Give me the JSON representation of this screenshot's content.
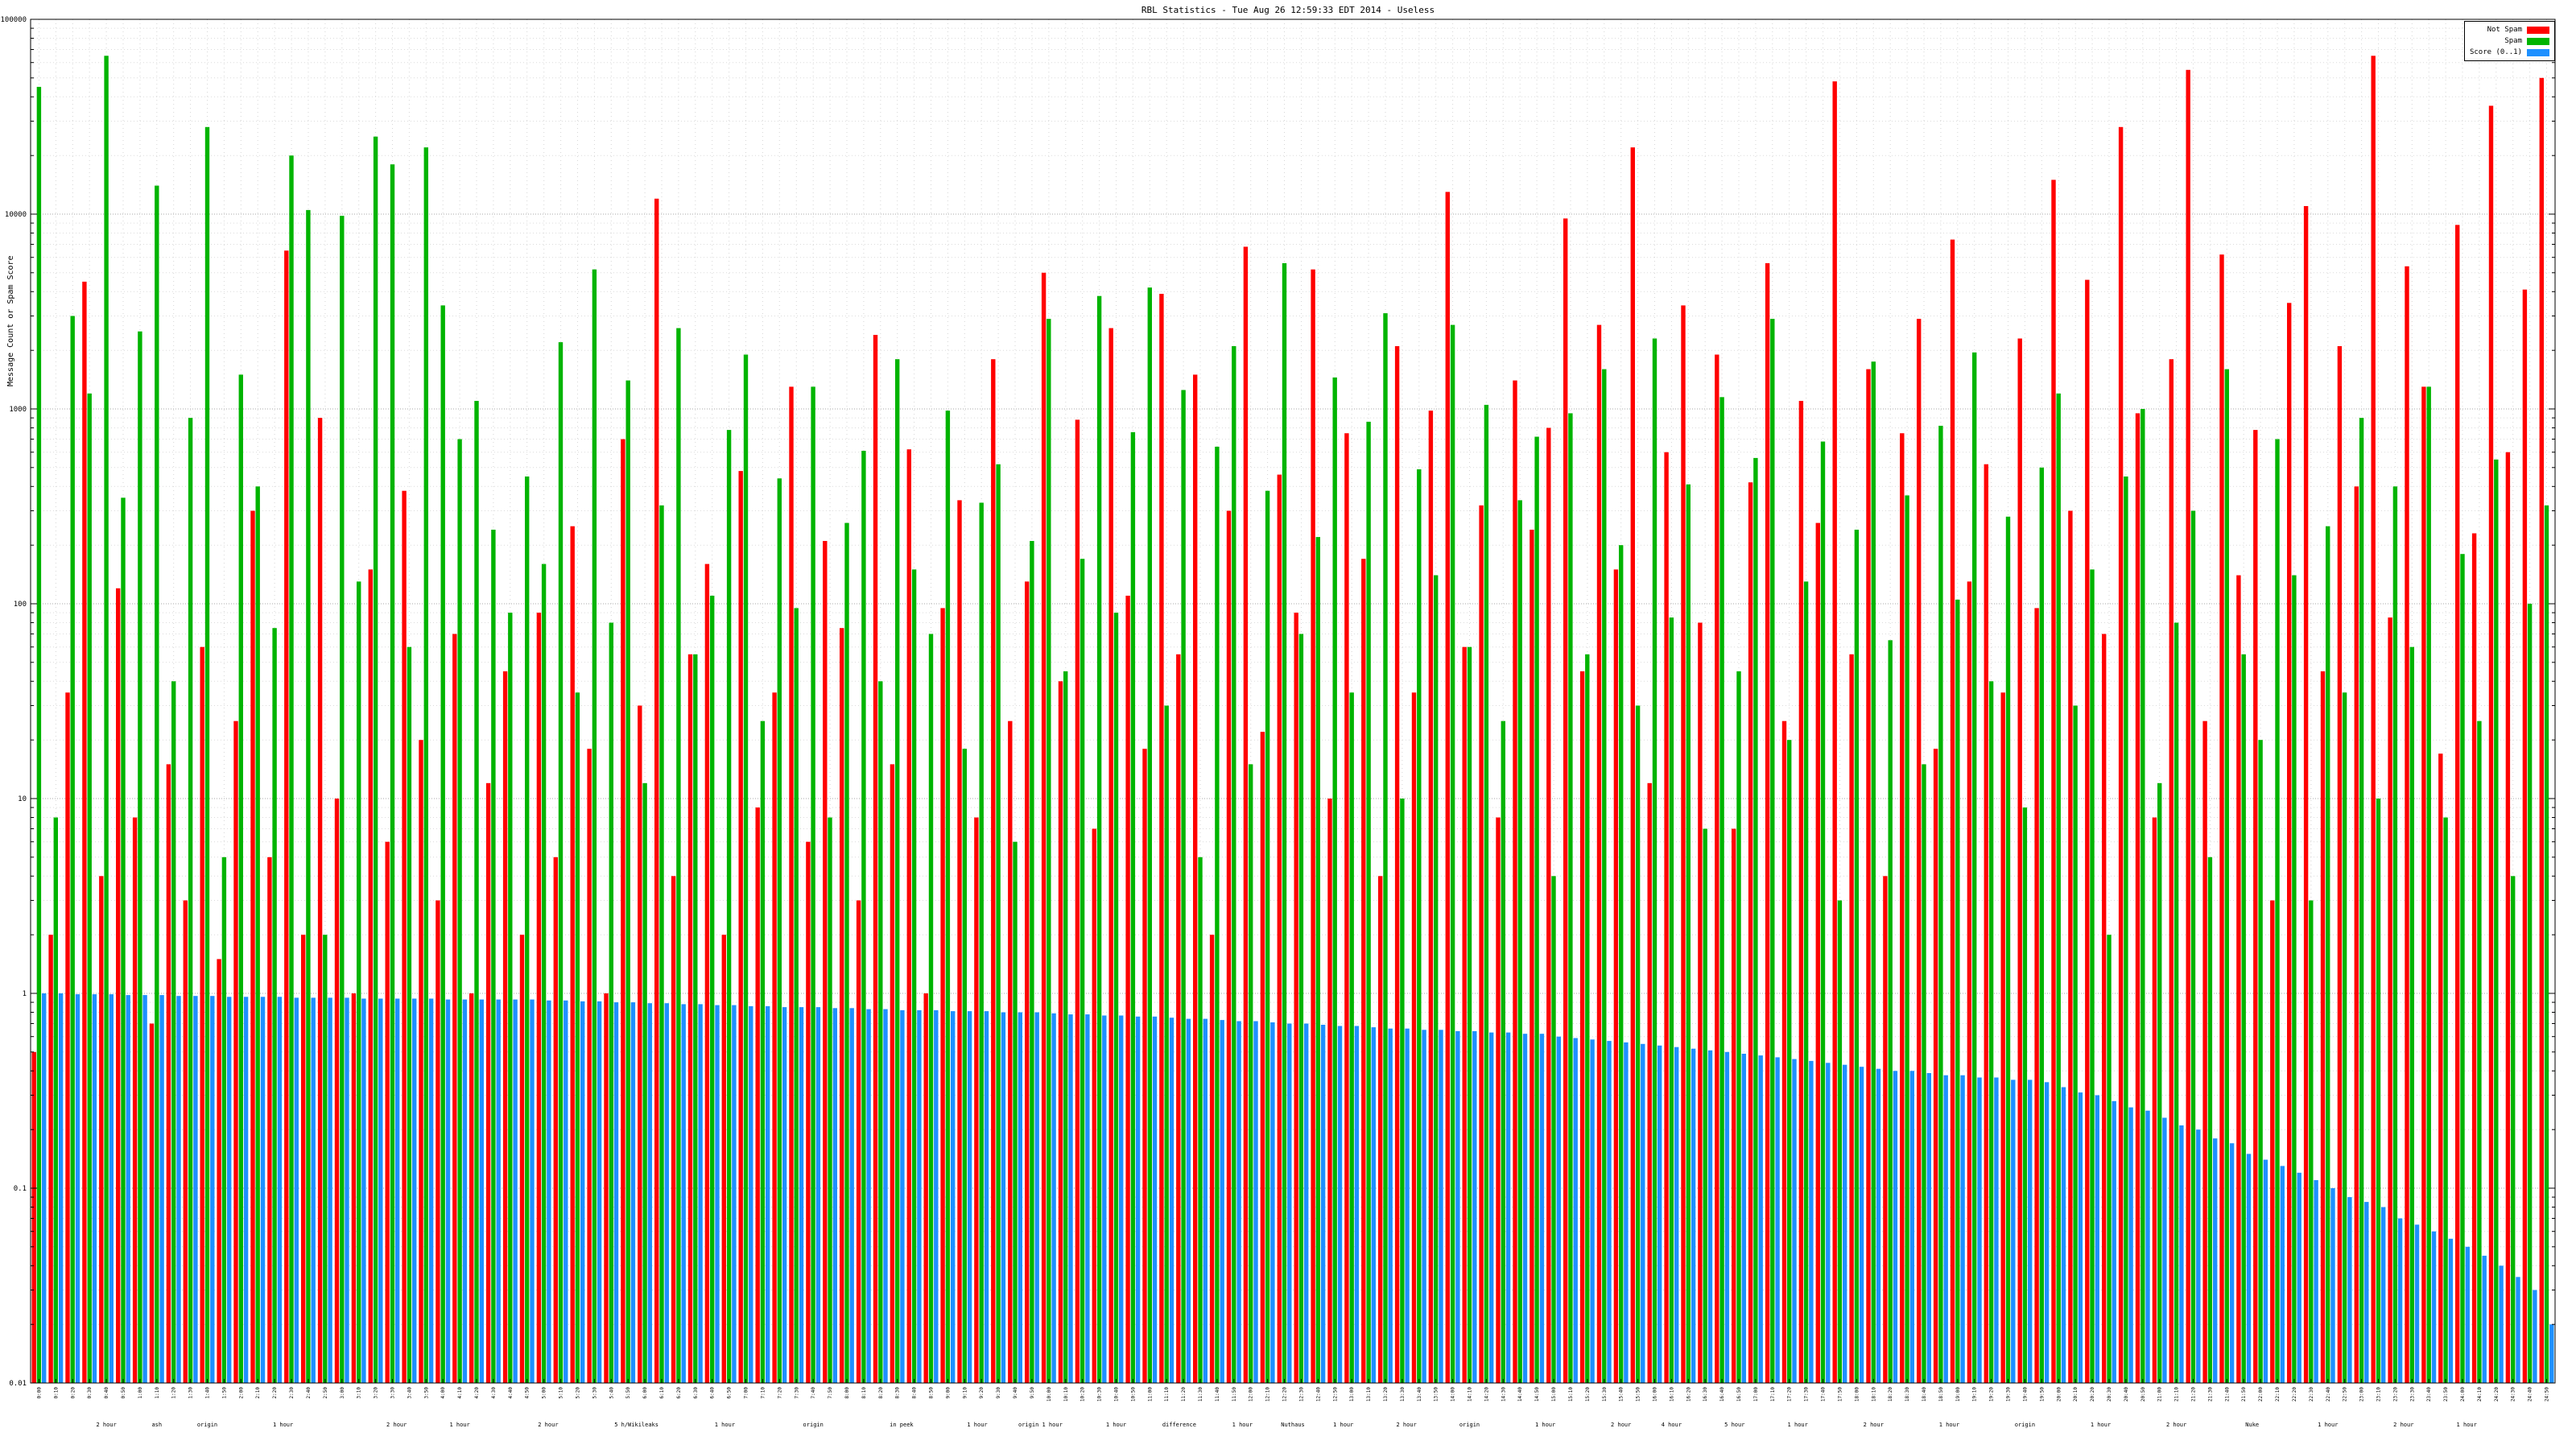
{
  "title": "RBL Statistics - Tue Aug 26 12:59:33 EDT 2014 - Useless",
  "chart_data": {
    "type": "bar",
    "title": "RBL Statistics - Tue Aug 26 12:59:33 EDT 2014 - Useless",
    "xlabel": "",
    "ylabel": "Message Count or Spam Score",
    "y_scale": "log",
    "ylim": [
      0.01,
      100000
    ],
    "y_ticks": [
      0.01,
      0.1,
      1,
      10,
      100,
      1000,
      10000,
      100000
    ],
    "grid": true,
    "legend_position": "top-right",
    "colors": {
      "not_spam": "#ff0000",
      "spam": "#00b400",
      "score": "#1e90ff"
    },
    "categories": [
      "0:00",
      "0:10",
      "0:20",
      "0:30",
      "0:40",
      "0:50",
      "1:00",
      "1:10",
      "1:20",
      "1:30",
      "1:40",
      "1:50",
      "2:00",
      "2:10",
      "2:20",
      "2:30",
      "2:40",
      "2:50",
      "3:00",
      "3:10",
      "3:20",
      "3:30",
      "3:40",
      "3:50",
      "4:00",
      "4:10",
      "4:20",
      "4:30",
      "4:40",
      "4:50",
      "5:00",
      "5:10",
      "5:20",
      "5:30",
      "5:40",
      "5:50",
      "6:00",
      "6:10",
      "6:20",
      "6:30",
      "6:40",
      "6:50",
      "7:00",
      "7:10",
      "7:20",
      "7:30",
      "7:40",
      "7:50",
      "8:00",
      "8:10",
      "8:20",
      "8:30",
      "8:40",
      "8:50",
      "9:00",
      "9:10",
      "9:20",
      "9:30",
      "9:40",
      "9:50",
      "10:00",
      "10:10",
      "10:20",
      "10:30",
      "10:40",
      "10:50",
      "11:00",
      "11:10",
      "11:20",
      "11:30",
      "11:40",
      "11:50",
      "12:00",
      "12:10",
      "12:20",
      "12:30",
      "12:40",
      "12:50",
      "13:00",
      "13:10",
      "13:20",
      "13:30",
      "13:40",
      "13:50",
      "14:00",
      "14:10",
      "14:20",
      "14:30",
      "14:40",
      "14:50",
      "15:00",
      "15:10",
      "15:20",
      "15:30",
      "15:40",
      "15:50",
      "16:00",
      "16:10",
      "16:20",
      "16:30",
      "16:40",
      "16:50",
      "17:00",
      "17:10",
      "17:20",
      "17:30",
      "17:40",
      "17:50",
      "18:00",
      "18:10",
      "18:20",
      "18:30",
      "18:40",
      "18:50",
      "19:00",
      "19:10",
      "19:20",
      "19:30",
      "19:40",
      "19:50",
      "20:00",
      "20:10",
      "20:20",
      "20:30",
      "20:40",
      "20:50",
      "21:00",
      "21:10",
      "21:20",
      "21:30",
      "21:40",
      "21:50",
      "22:00",
      "22:10",
      "22:20",
      "22:30",
      "22:40",
      "22:50",
      "23:00",
      "23:10",
      "23:20",
      "23:30",
      "23:40",
      "23:50",
      "24:00",
      "24:10",
      "24:20",
      "24:30",
      "24:40",
      "24:50"
    ],
    "series": [
      {
        "name": "Not Spam",
        "color_key": "not_spam",
        "values": [
          0.5,
          2,
          35,
          4500,
          4,
          120,
          8,
          0.7,
          15,
          3,
          60,
          1.5,
          25,
          300,
          5,
          6500,
          2,
          900,
          10,
          1,
          150,
          6,
          380,
          20,
          3,
          70,
          1,
          12,
          45,
          2,
          90,
          5,
          250,
          18,
          1,
          700,
          30,
          12000,
          4,
          55,
          160,
          2,
          480,
          9,
          35,
          1300,
          6,
          210,
          75,
          3,
          2400,
          15,
          620,
          1,
          95,
          340,
          8,
          1800,
          25,
          130,
          5000,
          40,
          880,
          7,
          2600,
          110,
          18,
          3900,
          55,
          1500,
          2,
          300,
          6800,
          22,
          460,
          90,
          5200,
          10,
          750,
          170,
          4,
          2100,
          35,
          980,
          13000,
          60,
          320,
          8,
          1400,
          240,
          800,
          9500,
          45,
          2700,
          150,
          22000,
          12,
          600,
          3400,
          80,
          1900,
          7,
          420,
          5600,
          25,
          1100,
          260,
          48000,
          55,
          1600,
          4,
          750,
          2900,
          18,
          7400,
          130,
          520,
          35,
          2300,
          95,
          15000,
          300,
          4600,
          70,
          28000,
          950,
          8,
          1800,
          55000,
          25,
          6200,
          140,
          780,
          3,
          3500,
          11000,
          45,
          2100,
          400,
          65000,
          85,
          5400,
          1300,
          17,
          8800,
          230,
          36000,
          600,
          4100,
          50000
        ]
      },
      {
        "name": "Spam",
        "color_key": "spam",
        "values": [
          45000,
          8,
          3000,
          1200,
          65000,
          350,
          2500,
          14000,
          40,
          900,
          28000,
          5,
          1500,
          400,
          75,
          20000,
          10500,
          2,
          9800,
          130,
          25000,
          18000,
          60,
          22000,
          3400,
          700,
          1100,
          240,
          90,
          450,
          160,
          2200,
          35,
          5200,
          80,
          1400,
          12,
          320,
          2600,
          55,
          110,
          780,
          1900,
          25,
          440,
          95,
          1300,
          8,
          260,
          610,
          40,
          1800,
          150,
          70,
          980,
          18,
          330,
          520,
          6,
          210,
          2900,
          45,
          170,
          3800,
          90,
          760,
          4200,
          30,
          1250,
          5,
          640,
          2100,
          15,
          380,
          5600,
          70,
          220,
          1450,
          35,
          860,
          3100,
          10,
          490,
          140,
          2700,
          60,
          1050,
          25,
          340,
          720,
          4,
          950,
          55,
          1600,
          200,
          30,
          2300,
          85,
          410,
          7,
          1150,
          45,
          560,
          2900,
          20,
          130,
          680,
          3,
          240,
          1750,
          65,
          360,
          15,
          820,
          105,
          1950,
          40,
          280,
          9,
          500,
          1200,
          30,
          150,
          2,
          450,
          1000,
          12,
          80,
          300,
          5,
          1600,
          55,
          20,
          700,
          140,
          3,
          250,
          35,
          900,
          10,
          400,
          60,
          1300,
          8,
          180,
          25,
          550,
          4,
          100,
          320
        ]
      },
      {
        "name": "Score (0..1)",
        "color_key": "score",
        "values": [
          1.0,
          1.0,
          0.99,
          0.99,
          0.99,
          0.98,
          0.98,
          0.98,
          0.97,
          0.97,
          0.97,
          0.96,
          0.96,
          0.96,
          0.96,
          0.95,
          0.95,
          0.95,
          0.95,
          0.94,
          0.94,
          0.94,
          0.94,
          0.94,
          0.93,
          0.93,
          0.93,
          0.93,
          0.93,
          0.93,
          0.92,
          0.92,
          0.91,
          0.91,
          0.9,
          0.9,
          0.89,
          0.89,
          0.88,
          0.88,
          0.87,
          0.87,
          0.86,
          0.86,
          0.85,
          0.85,
          0.85,
          0.84,
          0.84,
          0.83,
          0.83,
          0.82,
          0.82,
          0.82,
          0.81,
          0.81,
          0.81,
          0.8,
          0.8,
          0.8,
          0.79,
          0.78,
          0.78,
          0.77,
          0.77,
          0.76,
          0.76,
          0.75,
          0.74,
          0.74,
          0.73,
          0.72,
          0.72,
          0.71,
          0.7,
          0.7,
          0.69,
          0.68,
          0.68,
          0.67,
          0.66,
          0.66,
          0.65,
          0.65,
          0.64,
          0.64,
          0.63,
          0.63,
          0.62,
          0.62,
          0.6,
          0.59,
          0.58,
          0.57,
          0.56,
          0.55,
          0.54,
          0.53,
          0.52,
          0.51,
          0.5,
          0.49,
          0.48,
          0.47,
          0.46,
          0.45,
          0.44,
          0.43,
          0.42,
          0.41,
          0.4,
          0.4,
          0.39,
          0.38,
          0.38,
          0.37,
          0.37,
          0.36,
          0.36,
          0.35,
          0.33,
          0.31,
          0.3,
          0.28,
          0.26,
          0.25,
          0.23,
          0.21,
          0.2,
          0.18,
          0.17,
          0.15,
          0.14,
          0.13,
          0.12,
          0.11,
          0.1,
          0.09,
          0.085,
          0.08,
          0.07,
          0.065,
          0.06,
          0.055,
          0.05,
          0.045,
          0.04,
          0.035,
          0.03,
          0.02
        ]
      }
    ],
    "cluster_labels": [
      {
        "pos": 0.03,
        "text": "2 hour"
      },
      {
        "pos": 0.05,
        "text": "ash"
      },
      {
        "pos": 0.07,
        "text": "origin"
      },
      {
        "pos": 0.1,
        "text": "1 hour"
      },
      {
        "pos": 0.145,
        "text": "2 hour"
      },
      {
        "pos": 0.17,
        "text": "1 hour"
      },
      {
        "pos": 0.205,
        "text": "2 hour"
      },
      {
        "pos": 0.24,
        "text": "5 h/Wikileaks"
      },
      {
        "pos": 0.275,
        "text": "1 hour"
      },
      {
        "pos": 0.31,
        "text": "origin"
      },
      {
        "pos": 0.345,
        "text": "in peek"
      },
      {
        "pos": 0.375,
        "text": "1 hour"
      },
      {
        "pos": 0.4,
        "text": "origin 1 hour"
      },
      {
        "pos": 0.43,
        "text": "1 hour"
      },
      {
        "pos": 0.455,
        "text": "difference"
      },
      {
        "pos": 0.48,
        "text": "1 hour"
      },
      {
        "pos": 0.5,
        "text": "Nuthaus"
      },
      {
        "pos": 0.52,
        "text": "1 hour"
      },
      {
        "pos": 0.545,
        "text": "2 hour"
      },
      {
        "pos": 0.57,
        "text": "origin"
      },
      {
        "pos": 0.6,
        "text": "1 hour"
      },
      {
        "pos": 0.63,
        "text": "2 hour"
      },
      {
        "pos": 0.65,
        "text": "4 hour"
      },
      {
        "pos": 0.675,
        "text": "5 hour"
      },
      {
        "pos": 0.7,
        "text": "1 hour"
      },
      {
        "pos": 0.73,
        "text": "2 hour"
      },
      {
        "pos": 0.76,
        "text": "1 hour"
      },
      {
        "pos": 0.79,
        "text": "origin"
      },
      {
        "pos": 0.82,
        "text": "1 hour"
      },
      {
        "pos": 0.85,
        "text": "2 hour"
      },
      {
        "pos": 0.88,
        "text": "Nuke"
      },
      {
        "pos": 0.91,
        "text": "1 hour"
      },
      {
        "pos": 0.94,
        "text": "2 hour"
      },
      {
        "pos": 0.965,
        "text": "1 hour"
      }
    ]
  }
}
